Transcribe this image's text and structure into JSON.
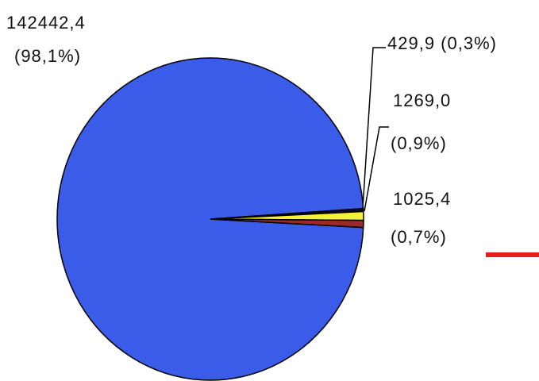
{
  "chart_data": {
    "type": "pie",
    "values": [
      142442.4,
      429.9,
      1269.0,
      1025.4
    ],
    "value_labels": [
      [
        "142442,4",
        "(98,1%)"
      ],
      [
        "429,9 (0,3%)"
      ],
      [
        "1269,0",
        "(0,9%)"
      ],
      [
        "1025,4",
        "(0,7%)"
      ]
    ],
    "colors": [
      "#3b5ce9",
      "#0a0a30",
      "#f5f03a",
      "#9a2a2a"
    ]
  }
}
